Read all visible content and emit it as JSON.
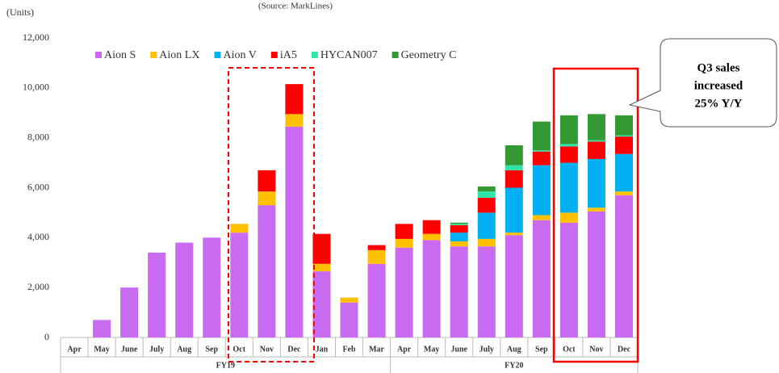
{
  "chart_data": {
    "type": "stacked_bar",
    "units_label": "(Units)",
    "source": "(Source: MarkLines)",
    "categories": [
      "Apr",
      "May",
      "June",
      "July",
      "Aug",
      "Sep",
      "Oct",
      "Nov",
      "Dec",
      "Jan",
      "Feb",
      "Mar",
      "Apr",
      "May",
      "June",
      "July",
      "Aug",
      "Sep",
      "Oct",
      "Nov",
      "Dec"
    ],
    "groups": [
      "FY19",
      "FY20"
    ],
    "series": [
      {
        "name": "Aion S",
        "color": "#c86bf0",
        "values": [
          0,
          700,
          2000,
          3400,
          3800,
          4000,
          4200,
          5300,
          8450,
          2650,
          1400,
          2950,
          3600,
          3900,
          3650,
          3650,
          4100,
          4700,
          4600,
          5050,
          5700
        ]
      },
      {
        "name": "Aion LX",
        "color": "#ffc000",
        "values": [
          0,
          0,
          0,
          0,
          0,
          0,
          350,
          550,
          500,
          300,
          200,
          550,
          350,
          250,
          200,
          300,
          100,
          200,
          400,
          150,
          150
        ]
      },
      {
        "name": "Aion V",
        "color": "#00b0f0",
        "values": [
          0,
          0,
          0,
          0,
          0,
          0,
          0,
          0,
          0,
          0,
          0,
          0,
          0,
          0,
          350,
          1050,
          1800,
          2000,
          2000,
          1950,
          1500
        ]
      },
      {
        "name": "iA5",
        "color": "#ff0000",
        "values": [
          0,
          0,
          0,
          0,
          0,
          0,
          0,
          850,
          1200,
          1200,
          0,
          200,
          600,
          550,
          300,
          600,
          700,
          550,
          650,
          700,
          700
        ]
      },
      {
        "name": "HYCAN007",
        "color": "#2ee6a6",
        "values": [
          0,
          0,
          0,
          0,
          0,
          0,
          0,
          0,
          0,
          0,
          0,
          0,
          0,
          0,
          50,
          250,
          200,
          50,
          100,
          50,
          50
        ]
      },
      {
        "name": "Geometry C",
        "color": "#339933",
        "values": [
          0,
          0,
          0,
          0,
          0,
          0,
          0,
          0,
          0,
          0,
          0,
          0,
          0,
          0,
          50,
          200,
          800,
          1150,
          1150,
          1050,
          800
        ]
      }
    ],
    "ylim": [
      0,
      12000
    ],
    "yticks": [
      0,
      {
        "value": 2000,
        "label": "2,000"
      },
      {
        "value": 4000,
        "label": "4,000"
      },
      {
        "value": 6000,
        "label": "6,000"
      },
      {
        "value": 8000,
        "label": "8,000"
      },
      {
        "value": 10000,
        "label": "10,000"
      },
      {
        "value": 12000,
        "label": "12,000"
      }
    ],
    "grid": false,
    "legend": "top",
    "annotation": [
      "Q3 sales",
      "increased",
      "25% Y/Y"
    ]
  }
}
